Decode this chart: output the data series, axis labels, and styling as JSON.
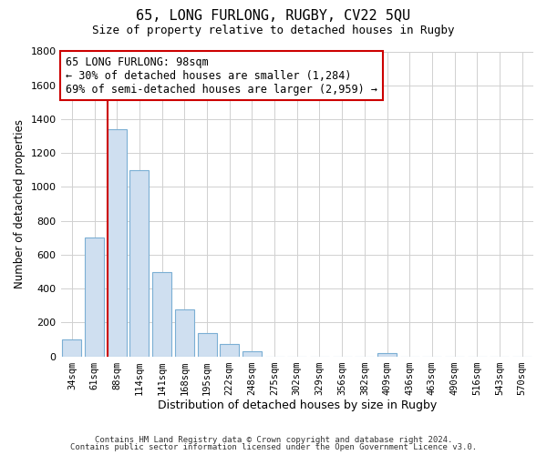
{
  "title": "65, LONG FURLONG, RUGBY, CV22 5QU",
  "subtitle": "Size of property relative to detached houses in Rugby",
  "xlabel": "Distribution of detached houses by size in Rugby",
  "ylabel": "Number of detached properties",
  "bar_labels": [
    "34sqm",
    "61sqm",
    "88sqm",
    "114sqm",
    "141sqm",
    "168sqm",
    "195sqm",
    "222sqm",
    "248sqm",
    "275sqm",
    "302sqm",
    "329sqm",
    "356sqm",
    "382sqm",
    "409sqm",
    "436sqm",
    "463sqm",
    "490sqm",
    "516sqm",
    "543sqm",
    "570sqm"
  ],
  "bar_values": [
    100,
    700,
    1340,
    1100,
    500,
    275,
    140,
    75,
    30,
    0,
    0,
    0,
    0,
    0,
    20,
    0,
    0,
    0,
    0,
    0,
    0
  ],
  "bar_fill_color": "#cfdff0",
  "bar_edge_color": "#7bafd4",
  "vline_color": "#cc0000",
  "vline_x_index": 2,
  "annotation_title": "65 LONG FURLONG: 98sqm",
  "annotation_line1": "← 30% of detached houses are smaller (1,284)",
  "annotation_line2": "69% of semi-detached houses are larger (2,959) →",
  "annotation_box_color": "#ffffff",
  "annotation_box_edge": "#cc0000",
  "ylim": [
    0,
    1800
  ],
  "yticks": [
    0,
    200,
    400,
    600,
    800,
    1000,
    1200,
    1400,
    1600,
    1800
  ],
  "footer1": "Contains HM Land Registry data © Crown copyright and database right 2024.",
  "footer2": "Contains public sector information licensed under the Open Government Licence v3.0.",
  "bg_color": "#ffffff",
  "grid_color": "#d0d0d0"
}
